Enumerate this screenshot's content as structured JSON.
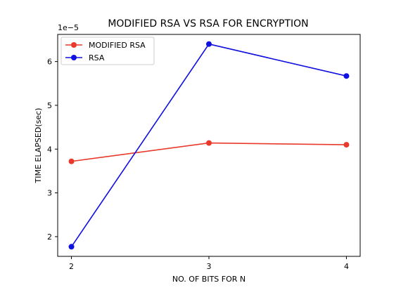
{
  "chart_data": {
    "type": "line",
    "title": "MODIFIED RSA VS RSA FOR ENCRYPTION",
    "xlabel": "NO. OF BITS FOR N",
    "ylabel": "TIME ELAPSED(sec)",
    "y_offset_label": "1e−5",
    "x": [
      2,
      3,
      4
    ],
    "xticks": [
      2,
      3,
      4
    ],
    "yticks": [
      2,
      3,
      4,
      5,
      6
    ],
    "xlim": [
      1.9,
      4.1
    ],
    "ylim": [
      1.55,
      6.62
    ],
    "grid": false,
    "legend_position": "top-left",
    "series": [
      {
        "name": "MODIFIED RSA",
        "color": "#e8392a",
        "values": [
          3.72,
          4.14,
          4.1
        ]
      },
      {
        "name": "RSA",
        "color": "#1010e0",
        "values": [
          1.77,
          6.4,
          5.67
        ]
      }
    ]
  }
}
